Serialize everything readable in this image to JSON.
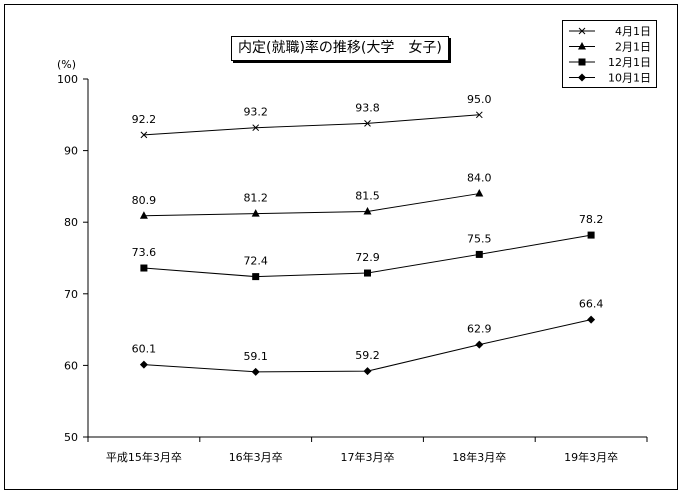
{
  "chart_data": {
    "type": "line",
    "title": "内定(就職)率の推移(大学　女子)",
    "ylabel": "(%)",
    "xlabel": "",
    "ylim": [
      50,
      100
    ],
    "yticks": [
      50,
      60,
      70,
      80,
      90,
      100
    ],
    "categories": [
      "平成15年3月卒",
      "16年3月卒",
      "17年3月卒",
      "18年3月卒",
      "19年3月卒"
    ],
    "grid": false,
    "legend": "top-right",
    "series": [
      {
        "name": "4月1日",
        "marker": "x",
        "values": [
          92.2,
          93.2,
          93.8,
          95.0,
          null
        ],
        "labels": [
          "92.2",
          "93.2",
          "93.8",
          "95.0",
          ""
        ]
      },
      {
        "name": "2月1日",
        "marker": "triangle",
        "values": [
          80.9,
          81.2,
          81.5,
          84.0,
          null
        ],
        "labels": [
          "80.9",
          "81.2",
          "81.5",
          "84.0",
          ""
        ]
      },
      {
        "name": "12月1日",
        "marker": "square",
        "values": [
          73.6,
          72.4,
          72.9,
          75.5,
          78.2
        ],
        "labels": [
          "73.6",
          "72.4",
          "72.9",
          "75.5",
          "78.2"
        ]
      },
      {
        "name": "10月1日",
        "marker": "diamond",
        "values": [
          60.1,
          59.1,
          59.2,
          62.9,
          66.4
        ],
        "labels": [
          "60.1",
          "59.1",
          "59.2",
          "62.9",
          "66.4"
        ]
      }
    ],
    "colors": {
      "line": "#000000",
      "axis": "#000000",
      "background": "#ffffff"
    }
  }
}
